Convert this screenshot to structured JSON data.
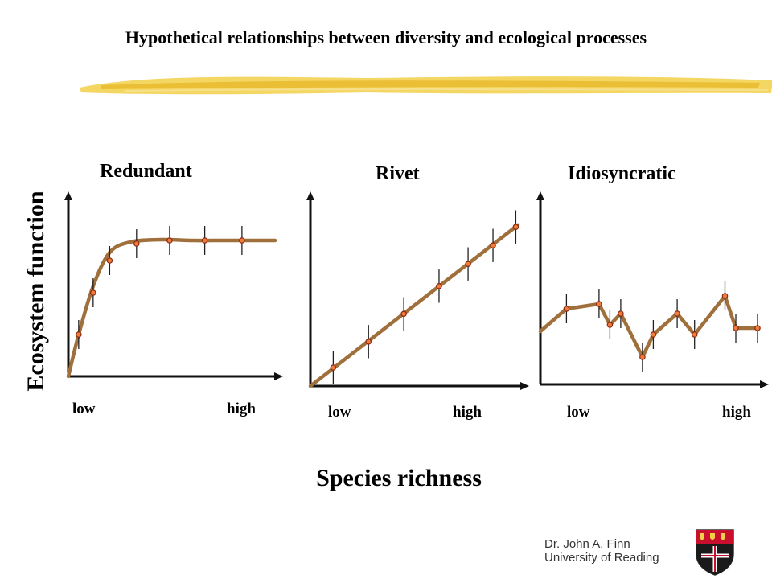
{
  "slide": {
    "title": "Hypothetical relationships between diversity and ecological processes",
    "y_label": "Ecosystem function",
    "x_label": "Species richness",
    "credit_name": "Dr. John A. Finn",
    "credit_affiliation": "University of Reading"
  },
  "colors": {
    "curve": "#a0703c",
    "marker_fill": "#f07a3a",
    "marker_stroke": "#8a2a10",
    "axis": "#111111",
    "brush": "#f2cf48"
  },
  "chart_data": [
    {
      "type": "line",
      "title": "Redundant",
      "tick_labels": [
        "low",
        "high"
      ],
      "xlim": [
        0,
        100
      ],
      "ylim": [
        0,
        100
      ],
      "smooth": true,
      "line": {
        "x": [
          0,
          5,
          12,
          20,
          30,
          45,
          60,
          75,
          90,
          100
        ],
        "y": [
          0,
          26,
          56,
          77,
          83.5,
          85,
          84.5,
          84.5,
          84.5,
          84.5
        ]
      },
      "points": {
        "x": [
          5,
          12,
          20,
          33,
          49,
          66,
          84
        ],
        "y": [
          26,
          52,
          72,
          82.5,
          84.5,
          84.5,
          84.5
        ]
      },
      "error": 9
    },
    {
      "type": "line",
      "title": "Rivet",
      "tick_labels": [
        "low",
        "high"
      ],
      "xlim": [
        0,
        100
      ],
      "ylim": [
        0,
        100
      ],
      "smooth": false,
      "line": {
        "x": [
          0,
          100
        ],
        "y": [
          0,
          87
        ]
      },
      "points": {
        "x": [
          11,
          28,
          45,
          62,
          76,
          88,
          99
        ],
        "y": [
          10,
          24,
          39,
          54,
          66,
          76,
          86
        ]
      },
      "error": 9
    },
    {
      "type": "line",
      "title": "Idiosyncratic",
      "tick_labels": [
        "low",
        "high"
      ],
      "xlim": [
        0,
        100
      ],
      "ylim": [
        0,
        100
      ],
      "smooth": false,
      "line": {
        "x": [
          0,
          12,
          27,
          32,
          37,
          47,
          52,
          63,
          71,
          85,
          90,
          100
        ],
        "y": [
          33,
          47,
          50,
          37,
          44,
          17,
          31,
          44,
          31,
          55,
          35,
          35
        ]
      },
      "points": {
        "x": [
          12,
          27,
          32,
          37,
          47,
          52,
          63,
          71,
          85,
          90,
          100
        ],
        "y": [
          47,
          50,
          37,
          44,
          17,
          31,
          44,
          31,
          55,
          35,
          35
        ]
      },
      "error": 9
    }
  ]
}
